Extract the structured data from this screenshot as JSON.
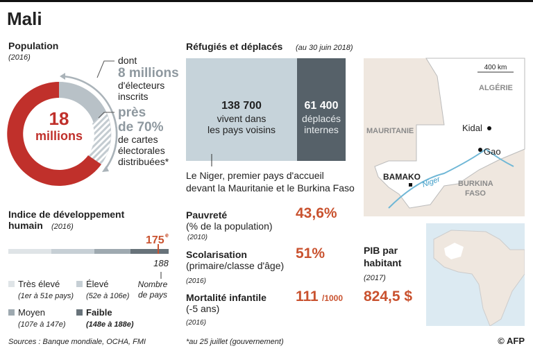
{
  "header": {
    "title": "Mali"
  },
  "population": {
    "title": "Population",
    "year": "(2016)",
    "total": "18",
    "total_unit": "millions",
    "voters": [
      "dont",
      "8 millions",
      "d'électeurs",
      "inscrits"
    ],
    "cards": [
      "près",
      "de 70%",
      "de cartes",
      "électorales",
      "distribuées*"
    ]
  },
  "hdi": {
    "title": [
      "Indice de développement",
      "humain"
    ],
    "year": "(2016)",
    "rank": "175",
    "rank_sup": "e",
    "total": "188",
    "total_label": [
      "Nombre",
      "de pays"
    ],
    "legend": [
      {
        "label": "Très élevé",
        "range": "(1er à 51e pays)"
      },
      {
        "label": "Élevé",
        "range": "(52e à 106e)"
      },
      {
        "label": "Moyen",
        "range": "(107e à 147e)"
      },
      {
        "label": "Faible",
        "range": "(148e à 188e)"
      }
    ]
  },
  "refugees": {
    "title": "Réfugiés et déplacés",
    "date": "(au 30 juin 2018)",
    "refugees": {
      "value": "138 700",
      "label": [
        "vivent dans",
        "les pays voisins"
      ]
    },
    "displaced": {
      "value": "61 400",
      "label": [
        "déplacés",
        "internes"
      ]
    },
    "note": [
      "Le Niger, premier pays d'accueil",
      "devant la Mauritanie et le Burkina Faso"
    ]
  },
  "indicators": [
    {
      "title": "Pauvreté",
      "sub": "(% de la population)",
      "year": "(2010)",
      "value": "43,6%"
    },
    {
      "title": "Scolarisation",
      "sub": "(primaire/classe d'âge)",
      "year": "(2016)",
      "value": "51%"
    },
    {
      "title": "Mortalité infantile",
      "sub": "(-5 ans)",
      "year": "(2016)",
      "value": "111",
      "unit": "/1000"
    }
  ],
  "map": {
    "scale": "400 km",
    "countries": [
      "ALGÉRIE",
      "MAURITANIE",
      [
        "BURKINA",
        "FASO"
      ]
    ],
    "cities": [
      "Kidal",
      "Gao",
      "BAMAKO"
    ],
    "river": "Niger"
  },
  "gdp": {
    "title": [
      "PIB par",
      "habitant"
    ],
    "year": "(2017)",
    "value": "824,5 $"
  },
  "footer": {
    "sources": "Sources : Banque mondiale, OCHA, FMI",
    "footnote": "*au 25 juillet (gouvernement)",
    "credit": "© AFP"
  }
}
